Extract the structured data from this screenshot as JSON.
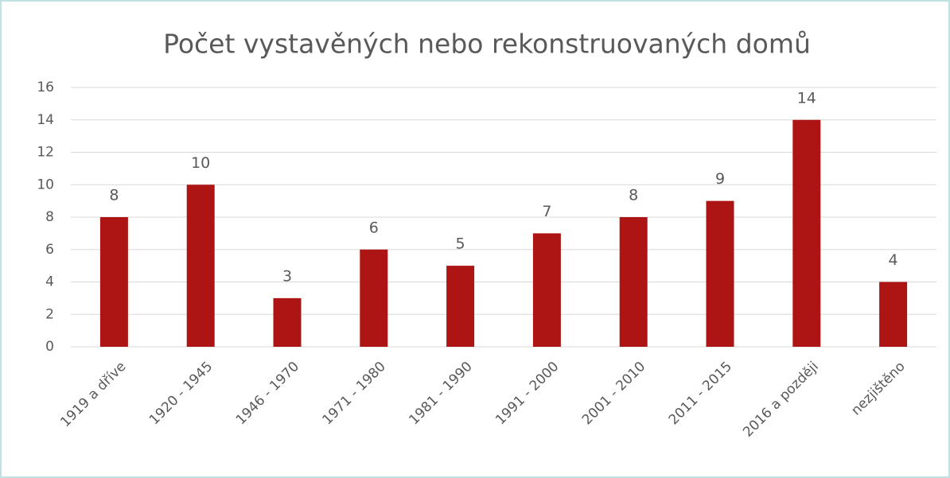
{
  "chart_data": {
    "type": "bar",
    "title": "Počet vystavěných nebo rekonstruovaných domů",
    "categories": [
      "1919 a dříve",
      "1920 - 1945",
      "1946 - 1970",
      "1971 - 1980",
      "1981 - 1990",
      "1991 - 2000",
      "2001 - 2010",
      "2011 - 2015",
      "2016 a později",
      "nezjištěno"
    ],
    "values": [
      8,
      10,
      3,
      6,
      5,
      7,
      8,
      9,
      14,
      4
    ],
    "color": "#ad1515",
    "ylim": [
      0,
      16
    ],
    "yticks": [
      0,
      2,
      4,
      6,
      8,
      10,
      12,
      14,
      16
    ],
    "grid": true
  }
}
